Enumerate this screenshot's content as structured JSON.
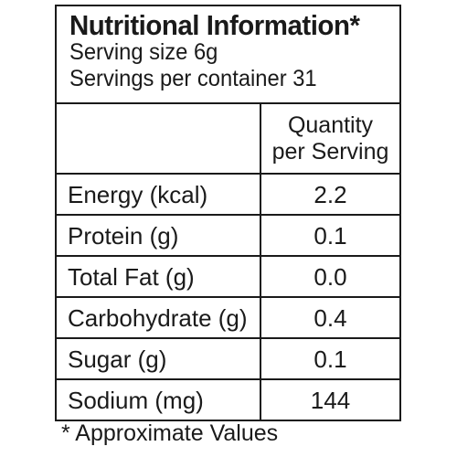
{
  "panel": {
    "title": "Nutritional Information*",
    "serving_size": "Serving size 6g",
    "servings_per_container": "Servings per container 31",
    "column_header_line1": "Quantity",
    "column_header_line2": "per Serving",
    "rows": [
      {
        "name": "Energy (kcal)",
        "value": "2.2"
      },
      {
        "name": "Protein (g)",
        "value": "0.1"
      },
      {
        "name": "Total Fat (g)",
        "value": "0.0"
      },
      {
        "name": "Carbohydrate (g)",
        "value": "0.4"
      },
      {
        "name": "Sugar (g)",
        "value": "0.1"
      },
      {
        "name": "Sodium (mg)",
        "value": "144"
      }
    ],
    "footnote": "* Approximate Values"
  }
}
